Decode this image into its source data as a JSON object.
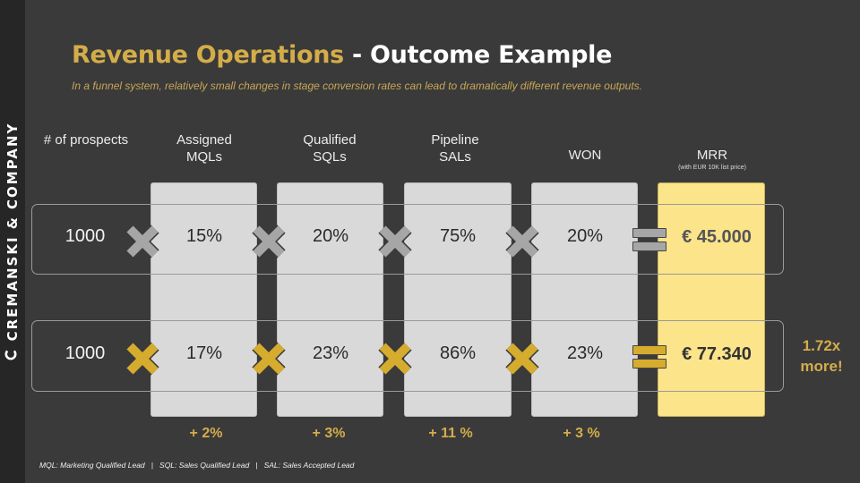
{
  "brand": {
    "name": "CREMANSKI & COMPANY"
  },
  "title": {
    "part1": "Revenue Operations",
    "part2": " - Outcome Example"
  },
  "subtitle": "In a funnel system, relatively small changes in stage conversion rates can lead to dramatically different revenue outputs.",
  "headers": {
    "prospects": "# of prospects",
    "mqls_line1": "Assigned",
    "mqls_line2": "MQLs",
    "sqls_line1": "Qualified",
    "sqls_line2": "SQLs",
    "sals_line1": "Pipeline",
    "sals_line2": "SALs",
    "won": "WON",
    "mrr": "MRR",
    "mrr_note": "(with EUR 10K list price)"
  },
  "rows": [
    {
      "prospects": "1000",
      "mql": "15%",
      "sql": "20%",
      "sal": "75%",
      "won": "20%",
      "mrr": "€ 45.000"
    },
    {
      "prospects": "1000",
      "mql": "17%",
      "sql": "23%",
      "sal": "86%",
      "won": "23%",
      "mrr": "€ 77.340"
    }
  ],
  "deltas": {
    "mql": "+ 2%",
    "sql": "+ 3%",
    "sal": "+ 11 %",
    "won": "+ 3 %"
  },
  "outcome": {
    "line1": "1.72x",
    "line2": "more!"
  },
  "footnote": "MQL: Marketing Qualified Lead   |   SQL: Sales Qualified Lead   |   SAL: Sales Accepted Lead",
  "colors": {
    "accent": "#d4ad4a",
    "symbol_gray": "#a6a6a6",
    "symbol_gold": "#d6ac2e",
    "mrr_text_1": "#555555",
    "mrr_text_2": "#333333"
  },
  "icons": {
    "multiply": "multiply-icon",
    "equals": "equals-icon",
    "logo": "c-logo-icon"
  }
}
